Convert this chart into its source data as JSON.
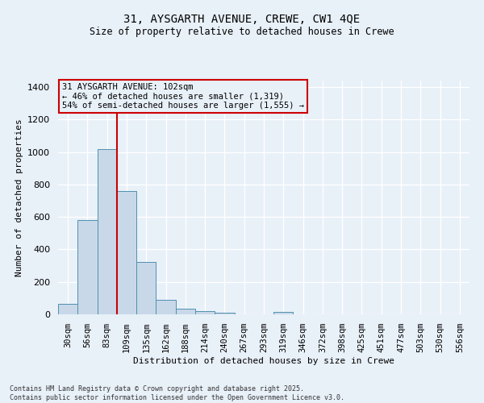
{
  "title_line1": "31, AYSGARTH AVENUE, CREWE, CW1 4QE",
  "title_line2": "Size of property relative to detached houses in Crewe",
  "xlabel": "Distribution of detached houses by size in Crewe",
  "ylabel": "Number of detached properties",
  "categories": [
    "30sqm",
    "56sqm",
    "83sqm",
    "109sqm",
    "135sqm",
    "162sqm",
    "188sqm",
    "214sqm",
    "240sqm",
    "267sqm",
    "293sqm",
    "319sqm",
    "346sqm",
    "372sqm",
    "398sqm",
    "425sqm",
    "451sqm",
    "477sqm",
    "503sqm",
    "530sqm",
    "556sqm"
  ],
  "values": [
    65,
    580,
    1020,
    760,
    325,
    90,
    35,
    22,
    12,
    0,
    0,
    15,
    0,
    0,
    0,
    0,
    0,
    0,
    0,
    0,
    0
  ],
  "bar_color": "#c8d8e8",
  "bar_edge_color": "#5090b0",
  "redline_bin": 2,
  "redline_color": "#cc0000",
  "annotation_title": "31 AYSGARTH AVENUE: 102sqm",
  "annotation_line2": "← 46% of detached houses are smaller (1,319)",
  "annotation_line3": "54% of semi-detached houses are larger (1,555) →",
  "annotation_box_color": "#cc0000",
  "ylim": [
    0,
    1440
  ],
  "yticks": [
    0,
    200,
    400,
    600,
    800,
    1000,
    1200,
    1400
  ],
  "background_color": "#e8f0f8",
  "grid_color": "#ffffff",
  "footer_line1": "Contains HM Land Registry data © Crown copyright and database right 2025.",
  "footer_line2": "Contains public sector information licensed under the Open Government Licence v3.0."
}
